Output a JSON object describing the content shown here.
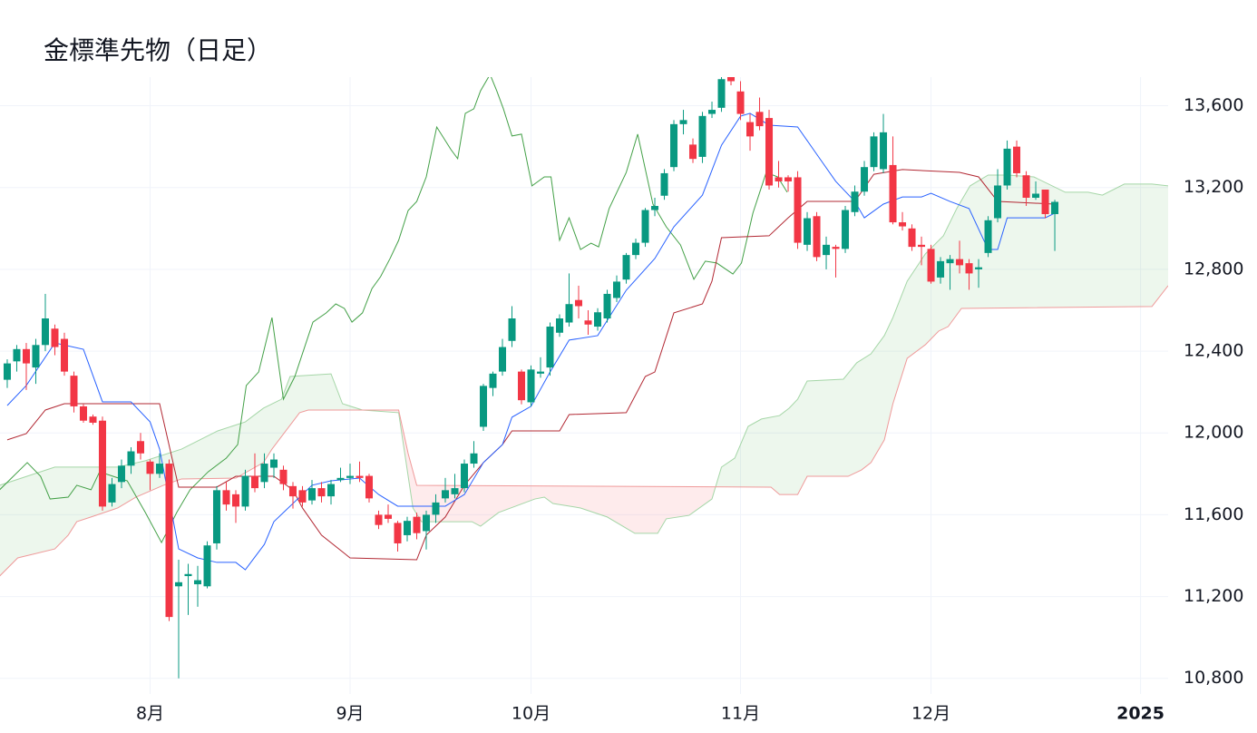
{
  "chart_data": {
    "type": "candlestick",
    "title": "金標準先物（日足）",
    "xlim": [
      -0.76,
      121.9
    ],
    "xticks": [
      {
        "value": 15,
        "label": "8月"
      },
      {
        "value": 36,
        "label": "9月"
      },
      {
        "value": 55,
        "label": "10月"
      },
      {
        "value": 77,
        "label": "11月"
      },
      {
        "value": 97,
        "label": "12月"
      },
      {
        "value": 119,
        "label": "2025",
        "bold": true
      }
    ],
    "ylim": [
      10790,
      13740
    ],
    "yticks": [
      {
        "value": 10800,
        "label": "10,800"
      },
      {
        "value": 11200,
        "label": "11,200"
      },
      {
        "value": 11600,
        "label": "11,600"
      },
      {
        "value": 12000,
        "label": "12,000"
      },
      {
        "value": 12400,
        "label": "12,400"
      },
      {
        "value": 12800,
        "label": "12,800"
      },
      {
        "value": 13200,
        "label": "13,200"
      },
      {
        "value": 13600,
        "label": "13,600"
      }
    ],
    "grid": true,
    "up_color": "#089981",
    "down_color": "#f23645",
    "open": [
      12260,
      12350,
      12410,
      12320,
      12430,
      12510,
      12460,
      12280,
      12130,
      12080,
      12060,
      11660,
      11760,
      11840,
      11960,
      11860,
      11800,
      11850,
      11250,
      11300,
      11260,
      11250,
      11460,
      11720,
      11700,
      11640,
      11790,
      11760,
      11830,
      11820,
      11740,
      11720,
      11670,
      11730,
      11690,
      11770,
      11780,
      11790,
      11790,
      11600,
      11600,
      11560,
      11500,
      11590,
      11520,
      11600,
      11680,
      11700,
      11730,
      11850,
      12030,
      12220,
      12300,
      12450,
      12300,
      12150,
      12290,
      12320,
      12490,
      12540,
      12650,
      12550,
      12520,
      12560,
      12660,
      12750,
      12870,
      12930,
      13090,
      13160,
      13300,
      13510,
      13410,
      13350,
      13560,
      13590,
      13740,
      13670,
      13520,
      13570,
      13540,
      13250,
      13250,
      13250,
      12920,
      13060,
      12870,
      12910,
      12900,
      13080,
      13180,
      13300,
      13290,
      13310,
      13030,
      13000,
      12920,
      12900,
      12760,
      12830,
      12850,
      12830,
      12800,
      12880,
      13050,
      13210,
      13400,
      13260,
      13150,
      13190,
      13070
    ],
    "high": [
      12360,
      12430,
      12440,
      12460,
      12680,
      12530,
      12490,
      12300,
      12140,
      12090,
      12080,
      11780,
      11870,
      11930,
      12000,
      11870,
      11900,
      11870,
      11380,
      11360,
      11350,
      11470,
      11740,
      11760,
      11720,
      11820,
      11900,
      11900,
      11900,
      11840,
      11760,
      11740,
      11770,
      11760,
      11770,
      11830,
      11850,
      11860,
      11800,
      11620,
      11650,
      11570,
      11590,
      11610,
      11620,
      11700,
      11780,
      11800,
      11870,
      11960,
      12240,
      12300,
      12460,
      12620,
      12310,
      12330,
      12370,
      12540,
      12580,
      12780,
      12720,
      12600,
      12610,
      12700,
      12770,
      12880,
      12950,
      13100,
      13150,
      13290,
      13530,
      13580,
      13440,
      13570,
      13620,
      13740,
      13740,
      13720,
      13560,
      13640,
      13580,
      13330,
      13260,
      13280,
      13080,
      13080,
      12960,
      12920,
      13110,
      13210,
      13330,
      13470,
      13560,
      13450,
      13080,
      13020,
      12960,
      12920,
      12860,
      12870,
      12940,
      12850,
      12850,
      13060,
      13290,
      13430,
      13430,
      13280,
      13230,
      13190,
      13140
    ],
    "low": [
      12220,
      12300,
      12210,
      12240,
      12400,
      12380,
      12280,
      12100,
      12050,
      12040,
      11620,
      11640,
      11730,
      11800,
      11870,
      11720,
      11780,
      11080,
      10800,
      11110,
      11150,
      11240,
      11430,
      11620,
      11560,
      11620,
      11710,
      11730,
      11780,
      11720,
      11630,
      11640,
      11650,
      11660,
      11650,
      11760,
      11750,
      11760,
      11660,
      11530,
      11560,
      11420,
      11470,
      11480,
      11430,
      11560,
      11660,
      11680,
      11710,
      11830,
      12010,
      12180,
      12280,
      12420,
      12140,
      12130,
      12270,
      12280,
      12470,
      12520,
      12560,
      12480,
      12500,
      12540,
      12640,
      12730,
      12850,
      12910,
      13060,
      13140,
      13280,
      13460,
      13320,
      13320,
      13540,
      13570,
      13700,
      13530,
      13380,
      13480,
      13190,
      13200,
      13180,
      12900,
      12890,
      12840,
      12800,
      12760,
      12880,
      13060,
      13160,
      13280,
      13270,
      13020,
      12990,
      12890,
      12820,
      12730,
      12730,
      12700,
      12780,
      12700,
      12710,
      12860,
      13030,
      13190,
      13250,
      13110,
      13140,
      13050,
      12890
    ],
    "close": [
      12340,
      12410,
      12340,
      12430,
      12560,
      12420,
      12300,
      12130,
      12060,
      12050,
      11640,
      11750,
      11840,
      11910,
      11900,
      11800,
      11850,
      11100,
      11270,
      11310,
      11280,
      11450,
      11720,
      11650,
      11640,
      11790,
      11730,
      11850,
      11870,
      11750,
      11690,
      11660,
      11730,
      11690,
      11750,
      11780,
      11790,
      11780,
      11680,
      11550,
      11580,
      11460,
      11570,
      11510,
      11600,
      11660,
      11720,
      11730,
      11850,
      11900,
      12230,
      12290,
      12420,
      12560,
      12160,
      12310,
      12300,
      12520,
      12560,
      12630,
      12620,
      12530,
      12590,
      12680,
      12740,
      12870,
      12930,
      13090,
      13110,
      13270,
      13510,
      13530,
      13340,
      13550,
      13580,
      13730,
      13720,
      13560,
      13450,
      13500,
      13210,
      13230,
      13230,
      12930,
      13050,
      12860,
      12920,
      12900,
      13090,
      13180,
      13300,
      13450,
      13470,
      13030,
      13010,
      12910,
      12910,
      12740,
      12840,
      12850,
      12820,
      12780,
      12810,
      13040,
      13210,
      13390,
      13270,
      13150,
      13170,
      13070,
      13130
    ],
    "lines": [
      {
        "color": "#a5d6a7",
        "fill_to": 1,
        "fill_colors": [
          "rgba(76,175,80,0.1)",
          "rgba(242,54,69,0.1)"
        ],
        "x": [
          -0.8,
          5.0,
          11.6,
          14.5,
          18.3,
          22.1,
          25.0,
          26.9,
          28.8,
          29.7,
          34.0,
          35.2,
          37.3,
          41.1,
          42.6,
          43.5,
          48.8,
          49.7,
          51.6,
          55.4,
          56.4,
          57.3,
          60.2,
          63.0,
          65.9,
          68.3,
          69.2,
          71.6,
          74.0,
          75.0,
          76.4,
          77.8,
          79.2,
          81.1,
          82.1,
          83.0,
          84.0,
          87.8,
          89.2,
          90.7,
          92.1,
          93.0,
          94.5,
          96.4,
          98.3,
          99.7,
          101.1,
          103.0,
          105.0,
          107.8,
          111.1,
          113.5,
          115.0,
          117.3,
          120.2,
          121.9
        ],
        "values": [
          11744,
          11833,
          11833,
          11864,
          11921,
          12010,
          12054,
          12121,
          12165,
          12276,
          12289,
          12143,
          12112,
          12099,
          11633,
          11566,
          11566,
          11544,
          11611,
          11677,
          11686,
          11655,
          11633,
          11589,
          11509,
          11509,
          11580,
          11597,
          11677,
          11833,
          11877,
          12032,
          12068,
          12085,
          12121,
          12165,
          12254,
          12263,
          12343,
          12387,
          12476,
          12564,
          12742,
          12875,
          12964,
          13097,
          13208,
          13261,
          13261,
          13252,
          13177,
          13177,
          13163,
          13217,
          13217,
          13208
        ]
      },
      {
        "color": "#ef9a9a",
        "x": [
          -0.8,
          1.1,
          5.0,
          6.4,
          7.3,
          8.8,
          11.6,
          13.5,
          16.4,
          18.3,
          24.0,
          26.9,
          27.8,
          30.7,
          31.6,
          41.1,
          42.1,
          43.0,
          80.2,
          81.1,
          83.0,
          84.0,
          88.3,
          89.7,
          90.7,
          92.1,
          93.0,
          94.5,
          96.4,
          97.8,
          98.8,
          100.2,
          120.2,
          121.9
        ],
        "values": [
          11300,
          11389,
          11433,
          11500,
          11566,
          11589,
          11633,
          11686,
          11744,
          11775,
          11779,
          11855,
          11921,
          12099,
          12112,
          12112,
          11899,
          11744,
          11735,
          11699,
          11699,
          11788,
          11788,
          11819,
          11855,
          11966,
          12143,
          12365,
          12431,
          12498,
          12520,
          12609,
          12618,
          12720
        ]
      },
      {
        "color": "#43a047",
        "x": [
          -0.8,
          2.1,
          3.5,
          4.5,
          6.4,
          7.3,
          8.8,
          9.7,
          11.1,
          12.6,
          14.5,
          16.2,
          17.8,
          19.2,
          21.1,
          23.0,
          24.2,
          25.1,
          26.4,
          27.8,
          29.0,
          30.2,
          32.1,
          33.5,
          34.5,
          35.4,
          36.2,
          37.3,
          38.3,
          39.2,
          40.2,
          41.1,
          42.1,
          43.0,
          44.0,
          45.1,
          46.6,
          47.3,
          48.1,
          49.0,
          49.7,
          50.7,
          51.4,
          52.1,
          53.0,
          54.0,
          55.1,
          56.4,
          57.1,
          58.0,
          59.0,
          60.2,
          61.3,
          62.1,
          63.2,
          65.0,
          66.2,
          67.8,
          69.2,
          70.7,
          72.1,
          73.3,
          74.5,
          76.2,
          77.1,
          78.3,
          79.7,
          80.9,
          81.9
        ],
        "values": [
          11722,
          11855,
          11788,
          11677,
          11686,
          11744,
          11722,
          11810,
          11788,
          11766,
          11611,
          11464,
          11611,
          11722,
          11810,
          11877,
          11943,
          12232,
          12298,
          12564,
          12165,
          12276,
          12542,
          12587,
          12631,
          12609,
          12542,
          12587,
          12706,
          12764,
          12853,
          12942,
          13088,
          13132,
          13252,
          13496,
          13385,
          13341,
          13563,
          13585,
          13673,
          13753,
          13673,
          13585,
          13452,
          13461,
          13208,
          13252,
          13252,
          12942,
          13052,
          12897,
          12928,
          12910,
          13097,
          13274,
          13461,
          13119,
          13008,
          12919,
          12751,
          12840,
          12831,
          12777,
          12831,
          13075,
          13274,
          13252,
          13177
        ]
      },
      {
        "color": "#b22833",
        "x": [
          0,
          2,
          4,
          6,
          16,
          18,
          22,
          24,
          28,
          30,
          31,
          33,
          36,
          43,
          44,
          46,
          48,
          50,
          52,
          53,
          58,
          59,
          65,
          67,
          68,
          70,
          73,
          74,
          75,
          80,
          82,
          84,
          89,
          91,
          94,
          100,
          102,
          104,
          110
        ],
        "values": [
          11966,
          11997,
          12112,
          12143,
          12143,
          11735,
          11735,
          11788,
          11788,
          11722,
          11633,
          11500,
          11389,
          11380,
          11500,
          11589,
          11744,
          11855,
          11943,
          12010,
          12010,
          12090,
          12099,
          12276,
          12298,
          12587,
          12631,
          12742,
          12955,
          12964,
          13052,
          13132,
          13132,
          13265,
          13288,
          13274,
          13252,
          13132,
          13119
        ]
      },
      {
        "color": "#2962ff",
        "x": [
          0,
          2,
          5,
          8,
          10,
          13,
          15,
          16,
          18,
          20,
          22,
          24,
          25,
          27,
          28,
          30,
          32,
          34,
          37,
          39,
          41,
          44,
          46,
          48,
          50,
          52,
          53,
          55,
          57,
          59,
          62,
          65,
          68,
          70,
          73,
          75,
          77,
          78,
          80,
          83,
          85,
          87,
          89,
          90,
          92,
          94,
          96,
          97,
          99,
          101,
          103,
          104,
          105,
          109,
          110
        ],
        "values": [
          12134,
          12232,
          12440,
          12409,
          12152,
          12152,
          12054,
          11921,
          11433,
          11389,
          11367,
          11367,
          11331,
          11455,
          11566,
          11655,
          11744,
          11766,
          11779,
          11699,
          11642,
          11642,
          11642,
          11699,
          11855,
          11943,
          12077,
          12130,
          12298,
          12454,
          12476,
          12698,
          12853,
          13008,
          13163,
          13407,
          13549,
          13563,
          13505,
          13496,
          13363,
          13230,
          13132,
          13052,
          13119,
          13154,
          13154,
          13172,
          13132,
          13097,
          12897,
          12897,
          13052,
          13052,
          13075
        ]
      }
    ]
  }
}
